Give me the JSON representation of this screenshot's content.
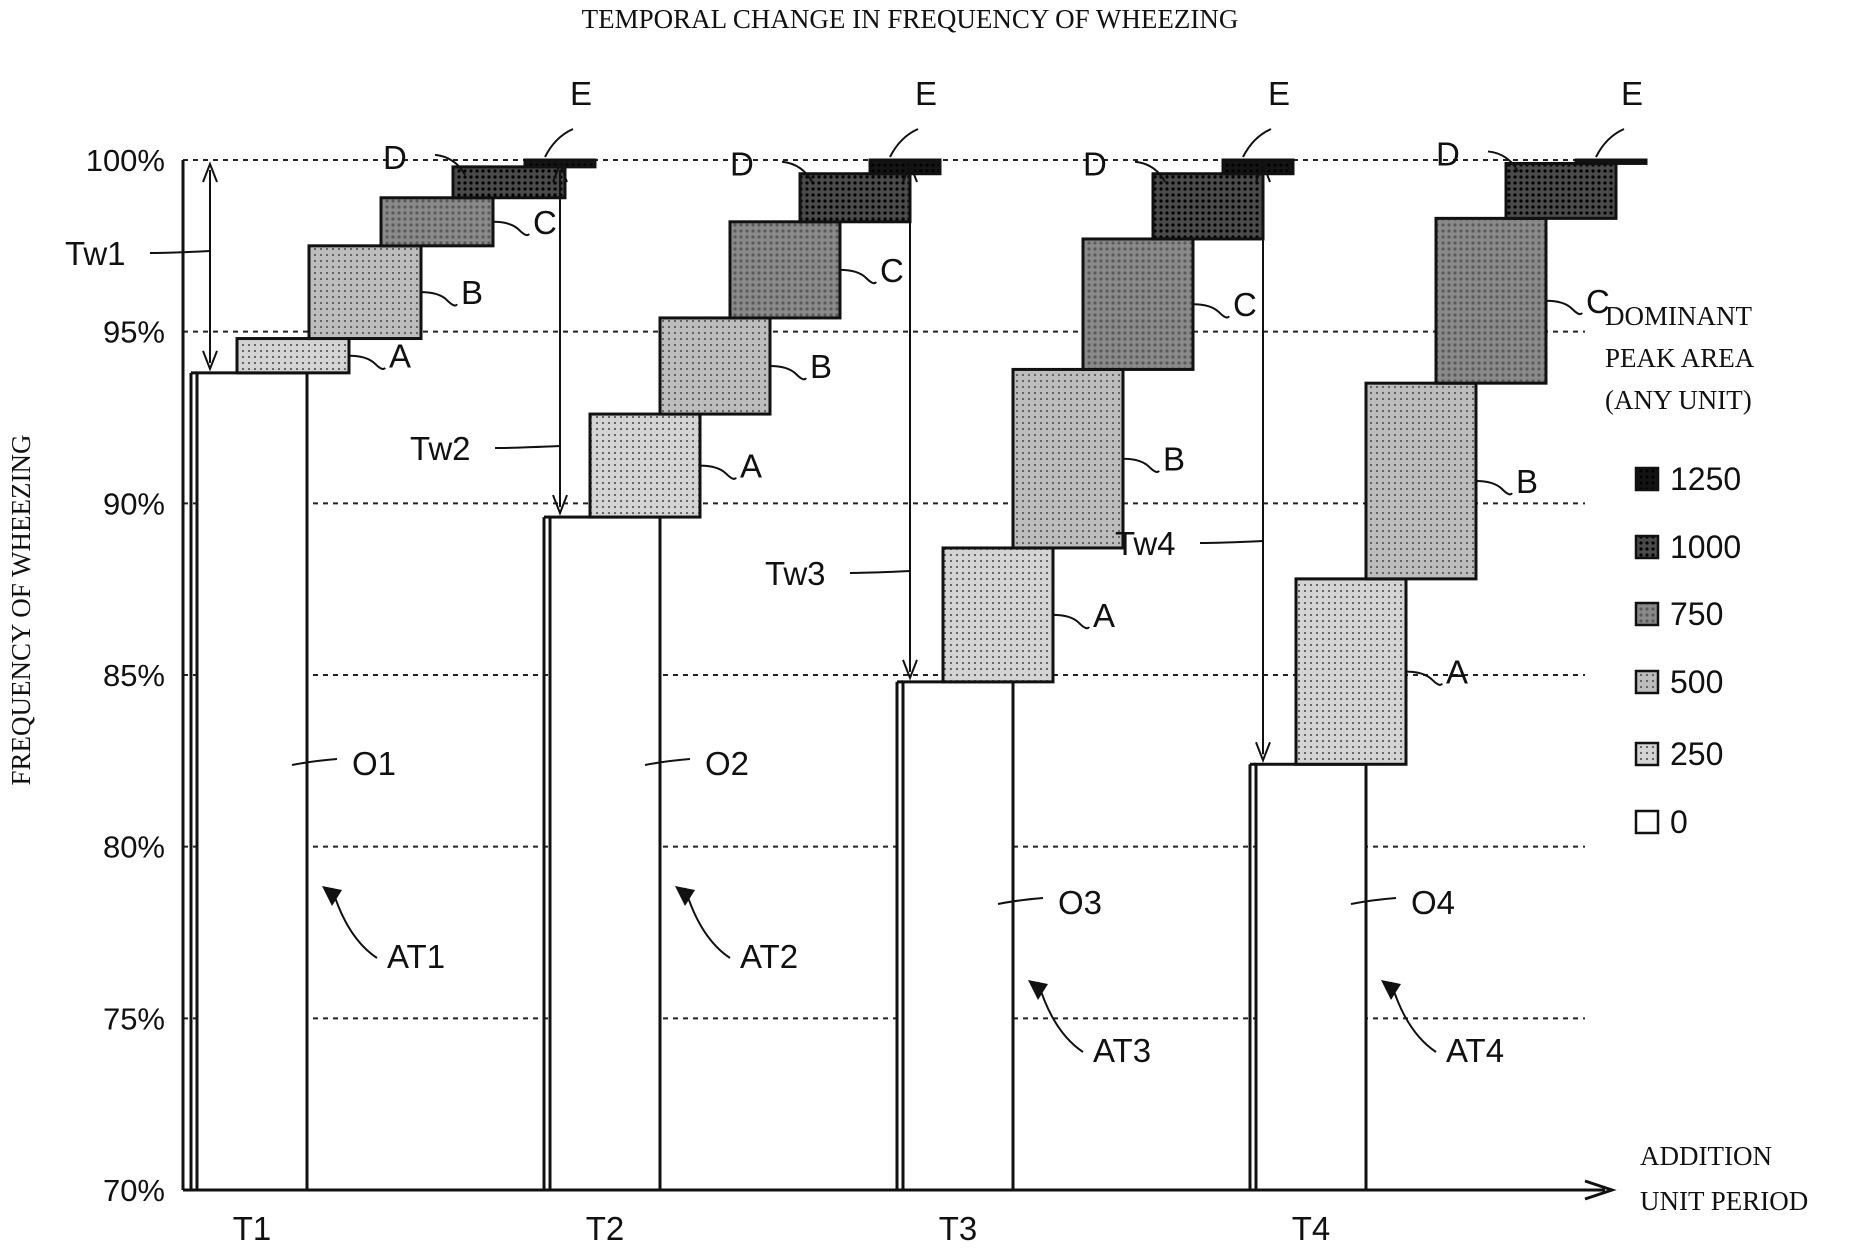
{
  "chart_data": {
    "type": "bar",
    "title": "TEMPORAL CHANGE IN FREQUENCY OF WHEEZING",
    "ylabel": "FREQUENCY OF WHEEZING",
    "xlabel": [
      "ADDITION",
      "UNIT PERIOD"
    ],
    "ylim": [
      70,
      100
    ],
    "y_ticks": [
      {
        "value": 70,
        "label": "70%"
      },
      {
        "value": 75,
        "label": "75%"
      },
      {
        "value": 80,
        "label": "80%"
      },
      {
        "value": 85,
        "label": "85%"
      },
      {
        "value": 90,
        "label": "90%"
      },
      {
        "value": 95,
        "label": "95%"
      },
      {
        "value": 100,
        "label": "100%"
      }
    ],
    "legend": {
      "title": [
        "DOMINANT",
        "PEAK AREA",
        "(ANY UNIT)"
      ],
      "position": "right",
      "entries": [
        {
          "label": "1250",
          "level": 1250
        },
        {
          "label": "1000",
          "level": 1000
        },
        {
          "label": "750",
          "level": 750
        },
        {
          "label": "500",
          "level": 500
        },
        {
          "label": "250",
          "level": 250
        },
        {
          "label": "0",
          "level": 0
        }
      ]
    },
    "shade_colors": {
      "0": "#ffffff",
      "250": "#d4d4d4",
      "500": "#bdbdbd",
      "750": "#8a8a8a",
      "1000": "#4a4a4a",
      "1250": "#141414"
    },
    "categories": [
      "T1",
      "T2",
      "T3",
      "T4"
    ],
    "periods": [
      {
        "name": "T1",
        "base": {
          "label": "O1",
          "value": 93.8
        },
        "span": {
          "label": "Tw1"
        },
        "bar_label": "AT1",
        "segments": [
          {
            "label": "A",
            "from": 93.8,
            "to": 94.8,
            "level": 250
          },
          {
            "label": "B",
            "from": 94.8,
            "to": 97.5,
            "level": 500
          },
          {
            "label": "C",
            "from": 97.5,
            "to": 98.9,
            "level": 750
          },
          {
            "label": "D",
            "from": 98.9,
            "to": 99.8,
            "level": 1000
          },
          {
            "label": "E",
            "from": 99.8,
            "to": 100,
            "level": 1250
          }
        ]
      },
      {
        "name": "T2",
        "base": {
          "label": "O2",
          "value": 89.6
        },
        "span": {
          "label": "Tw2"
        },
        "bar_label": "AT2",
        "segments": [
          {
            "label": "A",
            "from": 89.6,
            "to": 92.6,
            "level": 250
          },
          {
            "label": "B",
            "from": 92.6,
            "to": 95.4,
            "level": 500
          },
          {
            "label": "C",
            "from": 95.4,
            "to": 98.2,
            "level": 750
          },
          {
            "label": "D",
            "from": 98.2,
            "to": 99.6,
            "level": 1000
          },
          {
            "label": "E",
            "from": 99.6,
            "to": 100,
            "level": 1250
          }
        ]
      },
      {
        "name": "T3",
        "base": {
          "label": "O3",
          "value": 84.8
        },
        "span": {
          "label": "Tw3"
        },
        "bar_label": "AT3",
        "segments": [
          {
            "label": "A",
            "from": 84.8,
            "to": 88.7,
            "level": 250
          },
          {
            "label": "B",
            "from": 88.7,
            "to": 93.9,
            "level": 500
          },
          {
            "label": "C",
            "from": 93.9,
            "to": 97.7,
            "level": 750
          },
          {
            "label": "D",
            "from": 97.7,
            "to": 99.6,
            "level": 1000
          },
          {
            "label": "E",
            "from": 99.6,
            "to": 100,
            "level": 1250
          }
        ]
      },
      {
        "name": "T4",
        "base": {
          "label": "O4",
          "value": 82.4
        },
        "span": {
          "label": "Tw4"
        },
        "bar_label": "AT4",
        "segments": [
          {
            "label": "A",
            "from": 82.4,
            "to": 87.8,
            "level": 250
          },
          {
            "label": "B",
            "from": 87.8,
            "to": 93.5,
            "level": 500
          },
          {
            "label": "C",
            "from": 93.5,
            "to": 98.3,
            "level": 750
          },
          {
            "label": "D",
            "from": 98.3,
            "to": 99.9,
            "level": 1000
          },
          {
            "label": "E",
            "from": 99.9,
            "to": 100,
            "level": 1250
          }
        ]
      }
    ]
  }
}
